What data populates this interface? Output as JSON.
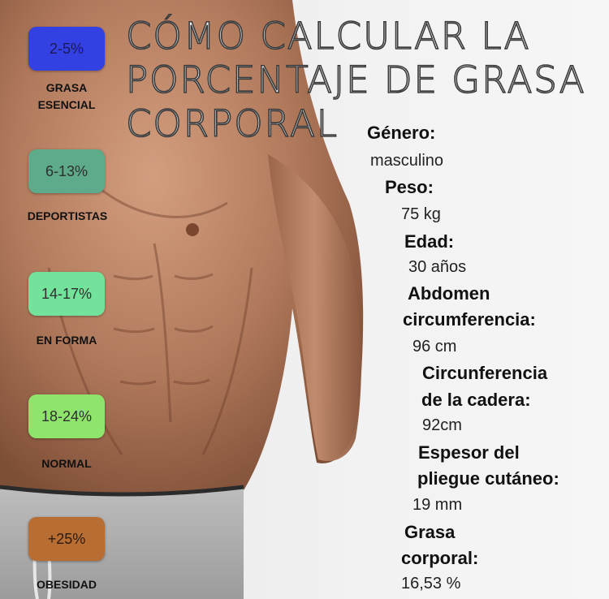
{
  "title": "CÓMO CALCULAR LA PORCENTAJE DE GRASA CORPORAL",
  "photo_icon": "shirtless-male-torso",
  "categories": [
    {
      "range": "2-5%",
      "label": "GRASA ESENCIAL",
      "color": "#3340e2"
    },
    {
      "range": "6-13%",
      "label": "DEPORTISTAS",
      "color": "#5dab8a"
    },
    {
      "range": "14-17%",
      "label": "EN FORMA",
      "color": "#73e29a"
    },
    {
      "range": "18-24%",
      "label": "NORMAL",
      "color": "#8fe46c"
    },
    {
      "range": "+25%",
      "label": "OBESIDAD",
      "color": "#b86d33"
    }
  ],
  "facts": {
    "gender": {
      "label": "Género:",
      "value": "masculino"
    },
    "weight": {
      "label": "Peso:",
      "value": "75 kg"
    },
    "age": {
      "label": "Edad:",
      "value": "30 años"
    },
    "abdomen": {
      "label_1": "Abdomen",
      "label_2": "circumferencia:",
      "value": "96 cm"
    },
    "hip": {
      "label_1": "Circunferencia",
      "label_2": "de la cadera:",
      "value": "92cm"
    },
    "skinfold": {
      "label_1": "Espesor del",
      "label_2": "pliegue cutáneo:",
      "value": "19 mm"
    },
    "bodyfat": {
      "label_1": "Grasa",
      "label_2": "corporal:",
      "value": "16,53 %"
    }
  }
}
